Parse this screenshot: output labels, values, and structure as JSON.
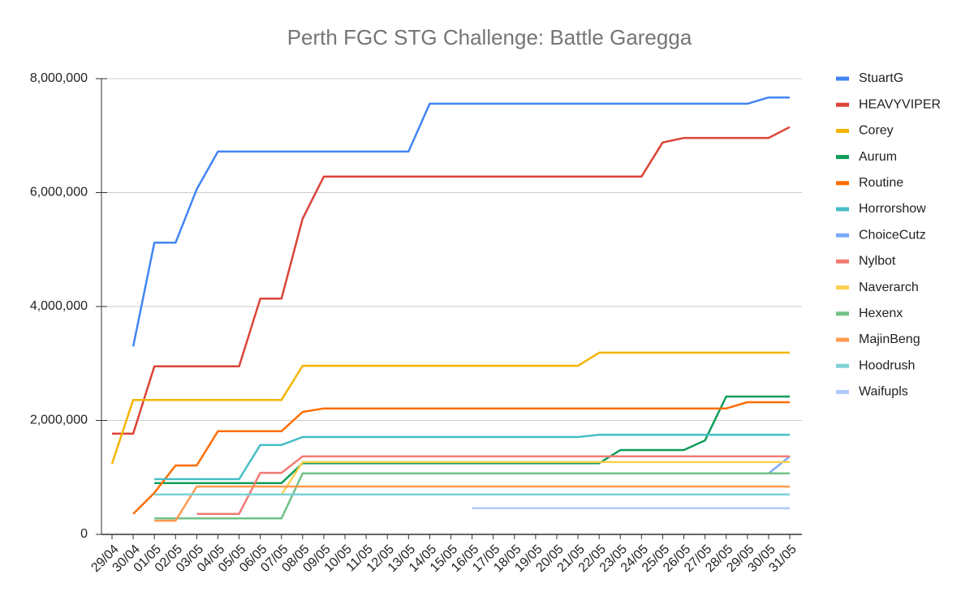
{
  "chart_data": {
    "type": "line",
    "title": "Perth FGC STG Challenge: Battle Garegga",
    "categories": [
      "29/04",
      "30/04",
      "01/05",
      "02/05",
      "03/05",
      "04/05",
      "05/05",
      "06/05",
      "07/05",
      "08/05",
      "09/05",
      "10/05",
      "11/05",
      "12/05",
      "13/05",
      "14/05",
      "15/05",
      "16/05",
      "17/05",
      "18/05",
      "19/05",
      "20/05",
      "21/05",
      "22/05",
      "23/05",
      "24/05",
      "25/05",
      "26/05",
      "27/05",
      "28/05",
      "29/05",
      "30/05",
      "31/05"
    ],
    "ylim": [
      0,
      8000000
    ],
    "yticks": [
      0,
      {
        "value": 2000000,
        "label": "2,000,000"
      },
      {
        "value": 4000000,
        "label": "4,000,000"
      },
      {
        "value": 6000000,
        "label": "6,000,000"
      },
      {
        "value": 8000000,
        "label": "8,000,000"
      }
    ],
    "grid": true,
    "legend": "right",
    "series": [
      {
        "name": "StuartG",
        "color": "#4285f4",
        "values": [
          null,
          3300000,
          5120000,
          5120000,
          6060000,
          6720000,
          6720000,
          6720000,
          6720000,
          6720000,
          6720000,
          6720000,
          6720000,
          6720000,
          6720000,
          7560000,
          7560000,
          7560000,
          7560000,
          7560000,
          7560000,
          7560000,
          7560000,
          7560000,
          7560000,
          7560000,
          7560000,
          7560000,
          7560000,
          7560000,
          7560000,
          7670000,
          7670000
        ]
      },
      {
        "name": "HEAVYVIPER",
        "color": "#db4437",
        "values": [
          1770000,
          1770000,
          2950000,
          2950000,
          2950000,
          2950000,
          2950000,
          4140000,
          4140000,
          5540000,
          6280000,
          6280000,
          6280000,
          6280000,
          6280000,
          6280000,
          6280000,
          6280000,
          6280000,
          6280000,
          6280000,
          6280000,
          6280000,
          6280000,
          6280000,
          6280000,
          6880000,
          6960000,
          6960000,
          6960000,
          6960000,
          6960000,
          7150000
        ]
      },
      {
        "name": "Corey",
        "color": "#f4b400",
        "values": [
          1240000,
          2360000,
          2360000,
          2360000,
          2360000,
          2360000,
          2360000,
          2360000,
          2360000,
          2960000,
          2960000,
          2960000,
          2960000,
          2960000,
          2960000,
          2960000,
          2960000,
          2960000,
          2960000,
          2960000,
          2960000,
          2960000,
          2960000,
          3190000,
          3190000,
          3190000,
          3190000,
          3190000,
          3190000,
          3190000,
          3190000,
          3190000,
          3190000
        ]
      },
      {
        "name": "Aurum",
        "color": "#0f9d58",
        "values": [
          null,
          null,
          900000,
          900000,
          900000,
          900000,
          900000,
          900000,
          900000,
          1250000,
          1250000,
          1250000,
          1250000,
          1250000,
          1250000,
          1250000,
          1250000,
          1250000,
          1250000,
          1250000,
          1250000,
          1250000,
          1250000,
          1250000,
          1480000,
          1480000,
          1480000,
          1480000,
          1650000,
          2420000,
          2420000,
          2420000,
          2420000
        ]
      },
      {
        "name": "Routine",
        "color": "#ff6d01",
        "values": [
          null,
          360000,
          730000,
          1210000,
          1210000,
          1810000,
          1810000,
          1810000,
          1810000,
          2150000,
          2210000,
          2210000,
          2210000,
          2210000,
          2210000,
          2210000,
          2210000,
          2210000,
          2210000,
          2210000,
          2210000,
          2210000,
          2210000,
          2210000,
          2210000,
          2210000,
          2210000,
          2210000,
          2210000,
          2210000,
          2320000,
          2320000,
          2320000
        ]
      },
      {
        "name": "Horrorshow",
        "color": "#46bdc6",
        "values": [
          null,
          null,
          970000,
          970000,
          970000,
          970000,
          970000,
          1570000,
          1570000,
          1710000,
          1710000,
          1710000,
          1710000,
          1710000,
          1710000,
          1710000,
          1710000,
          1710000,
          1710000,
          1710000,
          1710000,
          1710000,
          1710000,
          1750000,
          1750000,
          1750000,
          1750000,
          1750000,
          1750000,
          1750000,
          1750000,
          1750000,
          1750000
        ]
      },
      {
        "name": "ChoiceCutz",
        "color": "#7baaf7",
        "values": [
          null,
          null,
          null,
          null,
          null,
          null,
          null,
          null,
          null,
          null,
          null,
          null,
          null,
          null,
          null,
          null,
          null,
          null,
          null,
          null,
          null,
          null,
          null,
          null,
          null,
          null,
          null,
          null,
          null,
          null,
          null,
          1070000,
          1370000
        ]
      },
      {
        "name": "Nylbot",
        "color": "#f07b72",
        "values": [
          null,
          null,
          null,
          null,
          360000,
          360000,
          360000,
          1080000,
          1080000,
          1370000,
          1370000,
          1370000,
          1370000,
          1370000,
          1370000,
          1370000,
          1370000,
          1370000,
          1370000,
          1370000,
          1370000,
          1370000,
          1370000,
          1370000,
          1370000,
          1370000,
          1370000,
          1370000,
          1370000,
          1370000,
          1370000,
          1370000,
          1370000
        ]
      },
      {
        "name": "Naverarch",
        "color": "#fcd04f",
        "values": [
          null,
          null,
          null,
          null,
          700000,
          700000,
          700000,
          700000,
          700000,
          1270000,
          1270000,
          1270000,
          1270000,
          1270000,
          1270000,
          1270000,
          1270000,
          1270000,
          1270000,
          1270000,
          1270000,
          1270000,
          1270000,
          1270000,
          1270000,
          1270000,
          1270000,
          1270000,
          1270000,
          1270000,
          1270000,
          1270000,
          1270000
        ]
      },
      {
        "name": "Hexenx",
        "color": "#71c287",
        "values": [
          null,
          null,
          280000,
          280000,
          280000,
          280000,
          280000,
          280000,
          280000,
          1070000,
          1070000,
          1070000,
          1070000,
          1070000,
          1070000,
          1070000,
          1070000,
          1070000,
          1070000,
          1070000,
          1070000,
          1070000,
          1070000,
          1070000,
          1070000,
          1070000,
          1070000,
          1070000,
          1070000,
          1070000,
          1070000,
          1070000,
          1070000
        ]
      },
      {
        "name": "MajinBeng",
        "color": "#ff994d",
        "values": [
          null,
          null,
          240000,
          240000,
          840000,
          840000,
          840000,
          840000,
          840000,
          840000,
          840000,
          840000,
          840000,
          840000,
          840000,
          840000,
          840000,
          840000,
          840000,
          840000,
          840000,
          840000,
          840000,
          840000,
          840000,
          840000,
          840000,
          840000,
          840000,
          840000,
          840000,
          840000,
          840000
        ]
      },
      {
        "name": "Hoodrush",
        "color": "#7ed1d7",
        "values": [
          null,
          null,
          700000,
          700000,
          700000,
          700000,
          700000,
          700000,
          700000,
          700000,
          700000,
          700000,
          700000,
          700000,
          700000,
          700000,
          700000,
          700000,
          700000,
          700000,
          700000,
          700000,
          700000,
          700000,
          700000,
          700000,
          700000,
          700000,
          700000,
          700000,
          700000,
          700000,
          700000
        ]
      },
      {
        "name": "Waifupls",
        "color": "#aecbfa",
        "values": [
          null,
          null,
          null,
          null,
          null,
          null,
          null,
          null,
          null,
          null,
          null,
          null,
          null,
          null,
          null,
          null,
          null,
          460000,
          460000,
          460000,
          460000,
          460000,
          460000,
          460000,
          460000,
          460000,
          460000,
          460000,
          460000,
          460000,
          460000,
          460000,
          460000
        ]
      }
    ]
  }
}
